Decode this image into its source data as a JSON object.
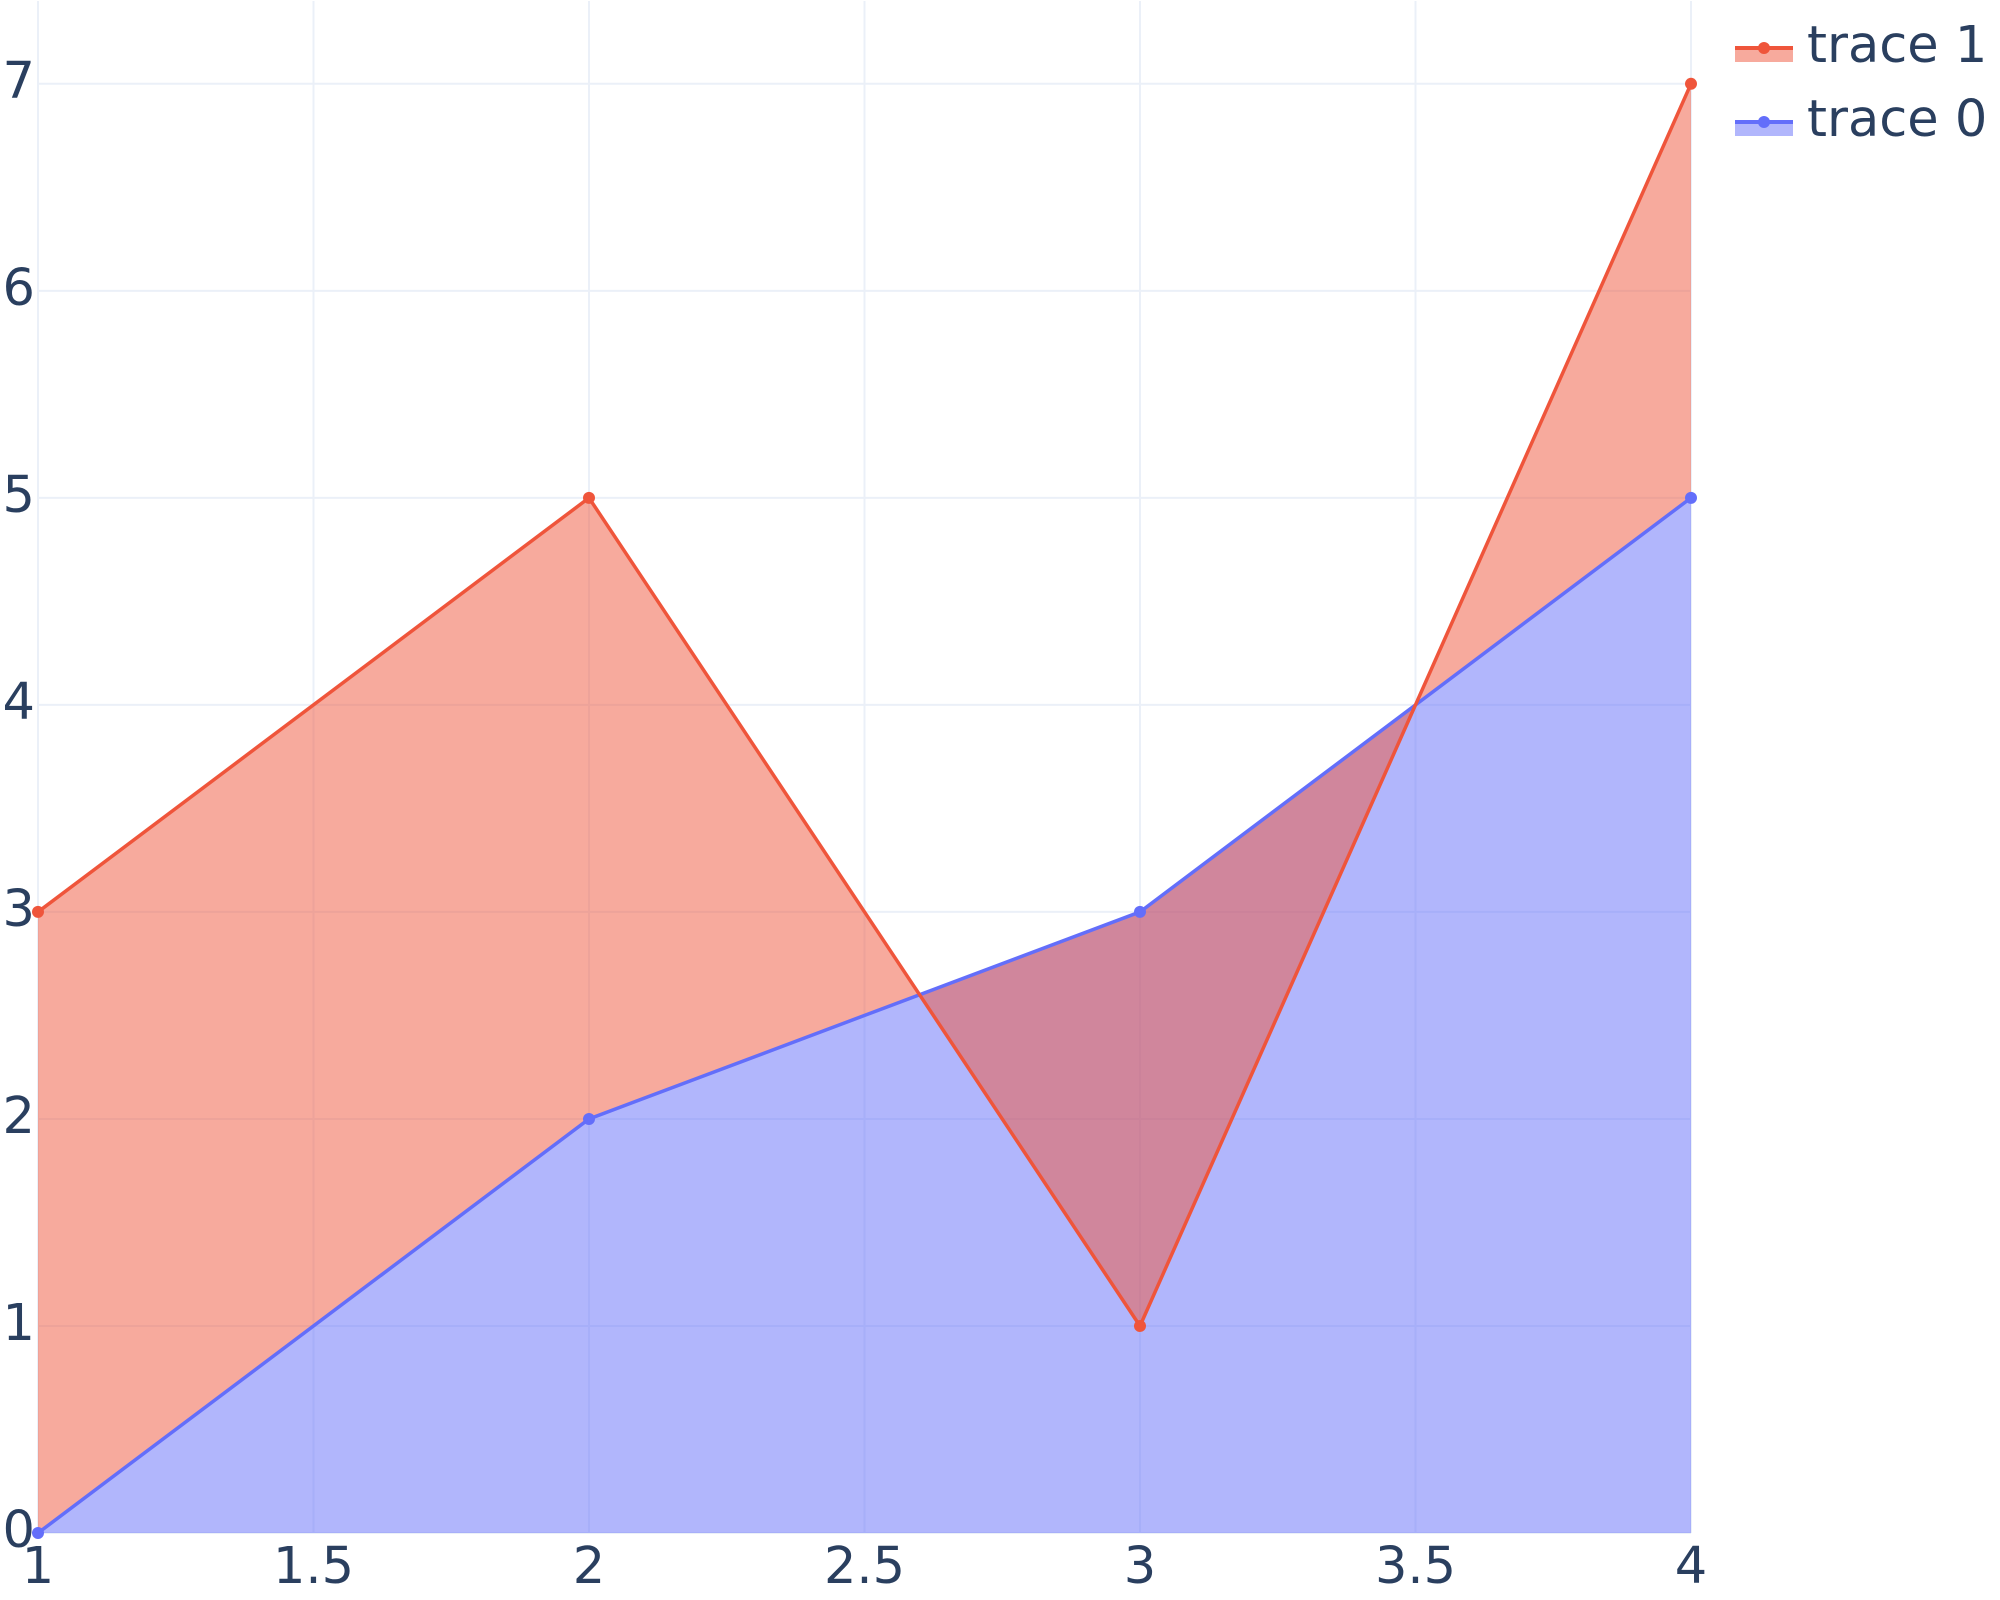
{
  "chart_data": {
    "type": "area",
    "x": [
      1,
      2,
      3,
      4
    ],
    "series": [
      {
        "name": "trace 0",
        "color": "#636efa",
        "fill": "tozeroy",
        "values": [
          0,
          2,
          3,
          5
        ]
      },
      {
        "name": "trace 1",
        "color": "#ef553b",
        "fill": "tonexty",
        "values": [
          3,
          5,
          1,
          7
        ]
      }
    ],
    "xlim": [
      1,
      4
    ],
    "xticks": [
      1,
      1.5,
      2,
      2.5,
      3,
      3.5,
      4
    ],
    "ylim": [
      0,
      7.4
    ],
    "yticks": [
      0,
      1,
      2,
      3,
      4,
      5,
      6,
      7
    ],
    "grid": true,
    "legend": "top-right"
  }
}
